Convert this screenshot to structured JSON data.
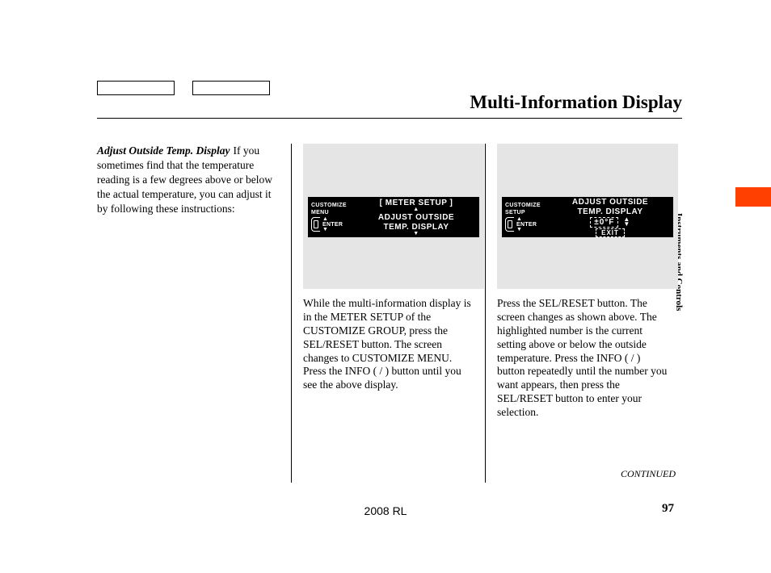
{
  "colors": {
    "accent_orange": "#ff4000",
    "lcd_bg": "#000000",
    "lcd_fg": "#ffffff",
    "screenshot_bg": "#e5e5e5",
    "text": "#000000",
    "page_bg": "#ffffff"
  },
  "typography": {
    "body_family": "Times New Roman, serif",
    "body_size_pt": 10,
    "header_title_size_pt": 17,
    "header_title_weight": "bold",
    "lcd_family": "Arial, sans-serif",
    "lcd_weight": "bold"
  },
  "header": {
    "title": "Multi-Information Display"
  },
  "side_tab": {
    "label": "Instruments and Controls"
  },
  "col1": {
    "subhead": "Adjust Outside Temp. Display",
    "body": "If you sometimes find that the temperature reading is a few degrees above or below the actual temperature, you can adjust it by following these instructions:"
  },
  "col2": {
    "lcd": {
      "left_label1": "CUSTOMIZE",
      "left_label2": "MENU",
      "enter_label": "ENTER",
      "line_bracket": "[ METER SETUP ]",
      "line_main1": "ADJUST OUTSIDE",
      "line_main2": "TEMP. DISPLAY",
      "arrow_up": "▲",
      "arrow_down": "▼"
    },
    "body": "While the multi-information display is in the METER SETUP of the CUSTOMIZE GROUP, press the SEL/RESET button. The screen changes to CUSTOMIZE MENU. Press the INFO (      /      ) button until you see the above display."
  },
  "col3": {
    "lcd": {
      "left_label1": "CUSTOMIZE",
      "left_label2": "SETUP",
      "enter_label": "ENTER",
      "line_main1": "ADJUST OUTSIDE",
      "line_main2": "TEMP. DISPLAY",
      "value": "±0°F",
      "updown": "▲▼",
      "exit": "EXIT"
    },
    "body": "Press the SEL/RESET button. The screen changes as shown above. The highlighted number is the current setting above or below the outside temperature. Press the INFO (      /      ) button repeatedly until the number you want appears, then press the SEL/RESET button to enter your selection."
  },
  "continued": "CONTINUED",
  "footer": {
    "model": "2008  RL",
    "page": "97"
  }
}
